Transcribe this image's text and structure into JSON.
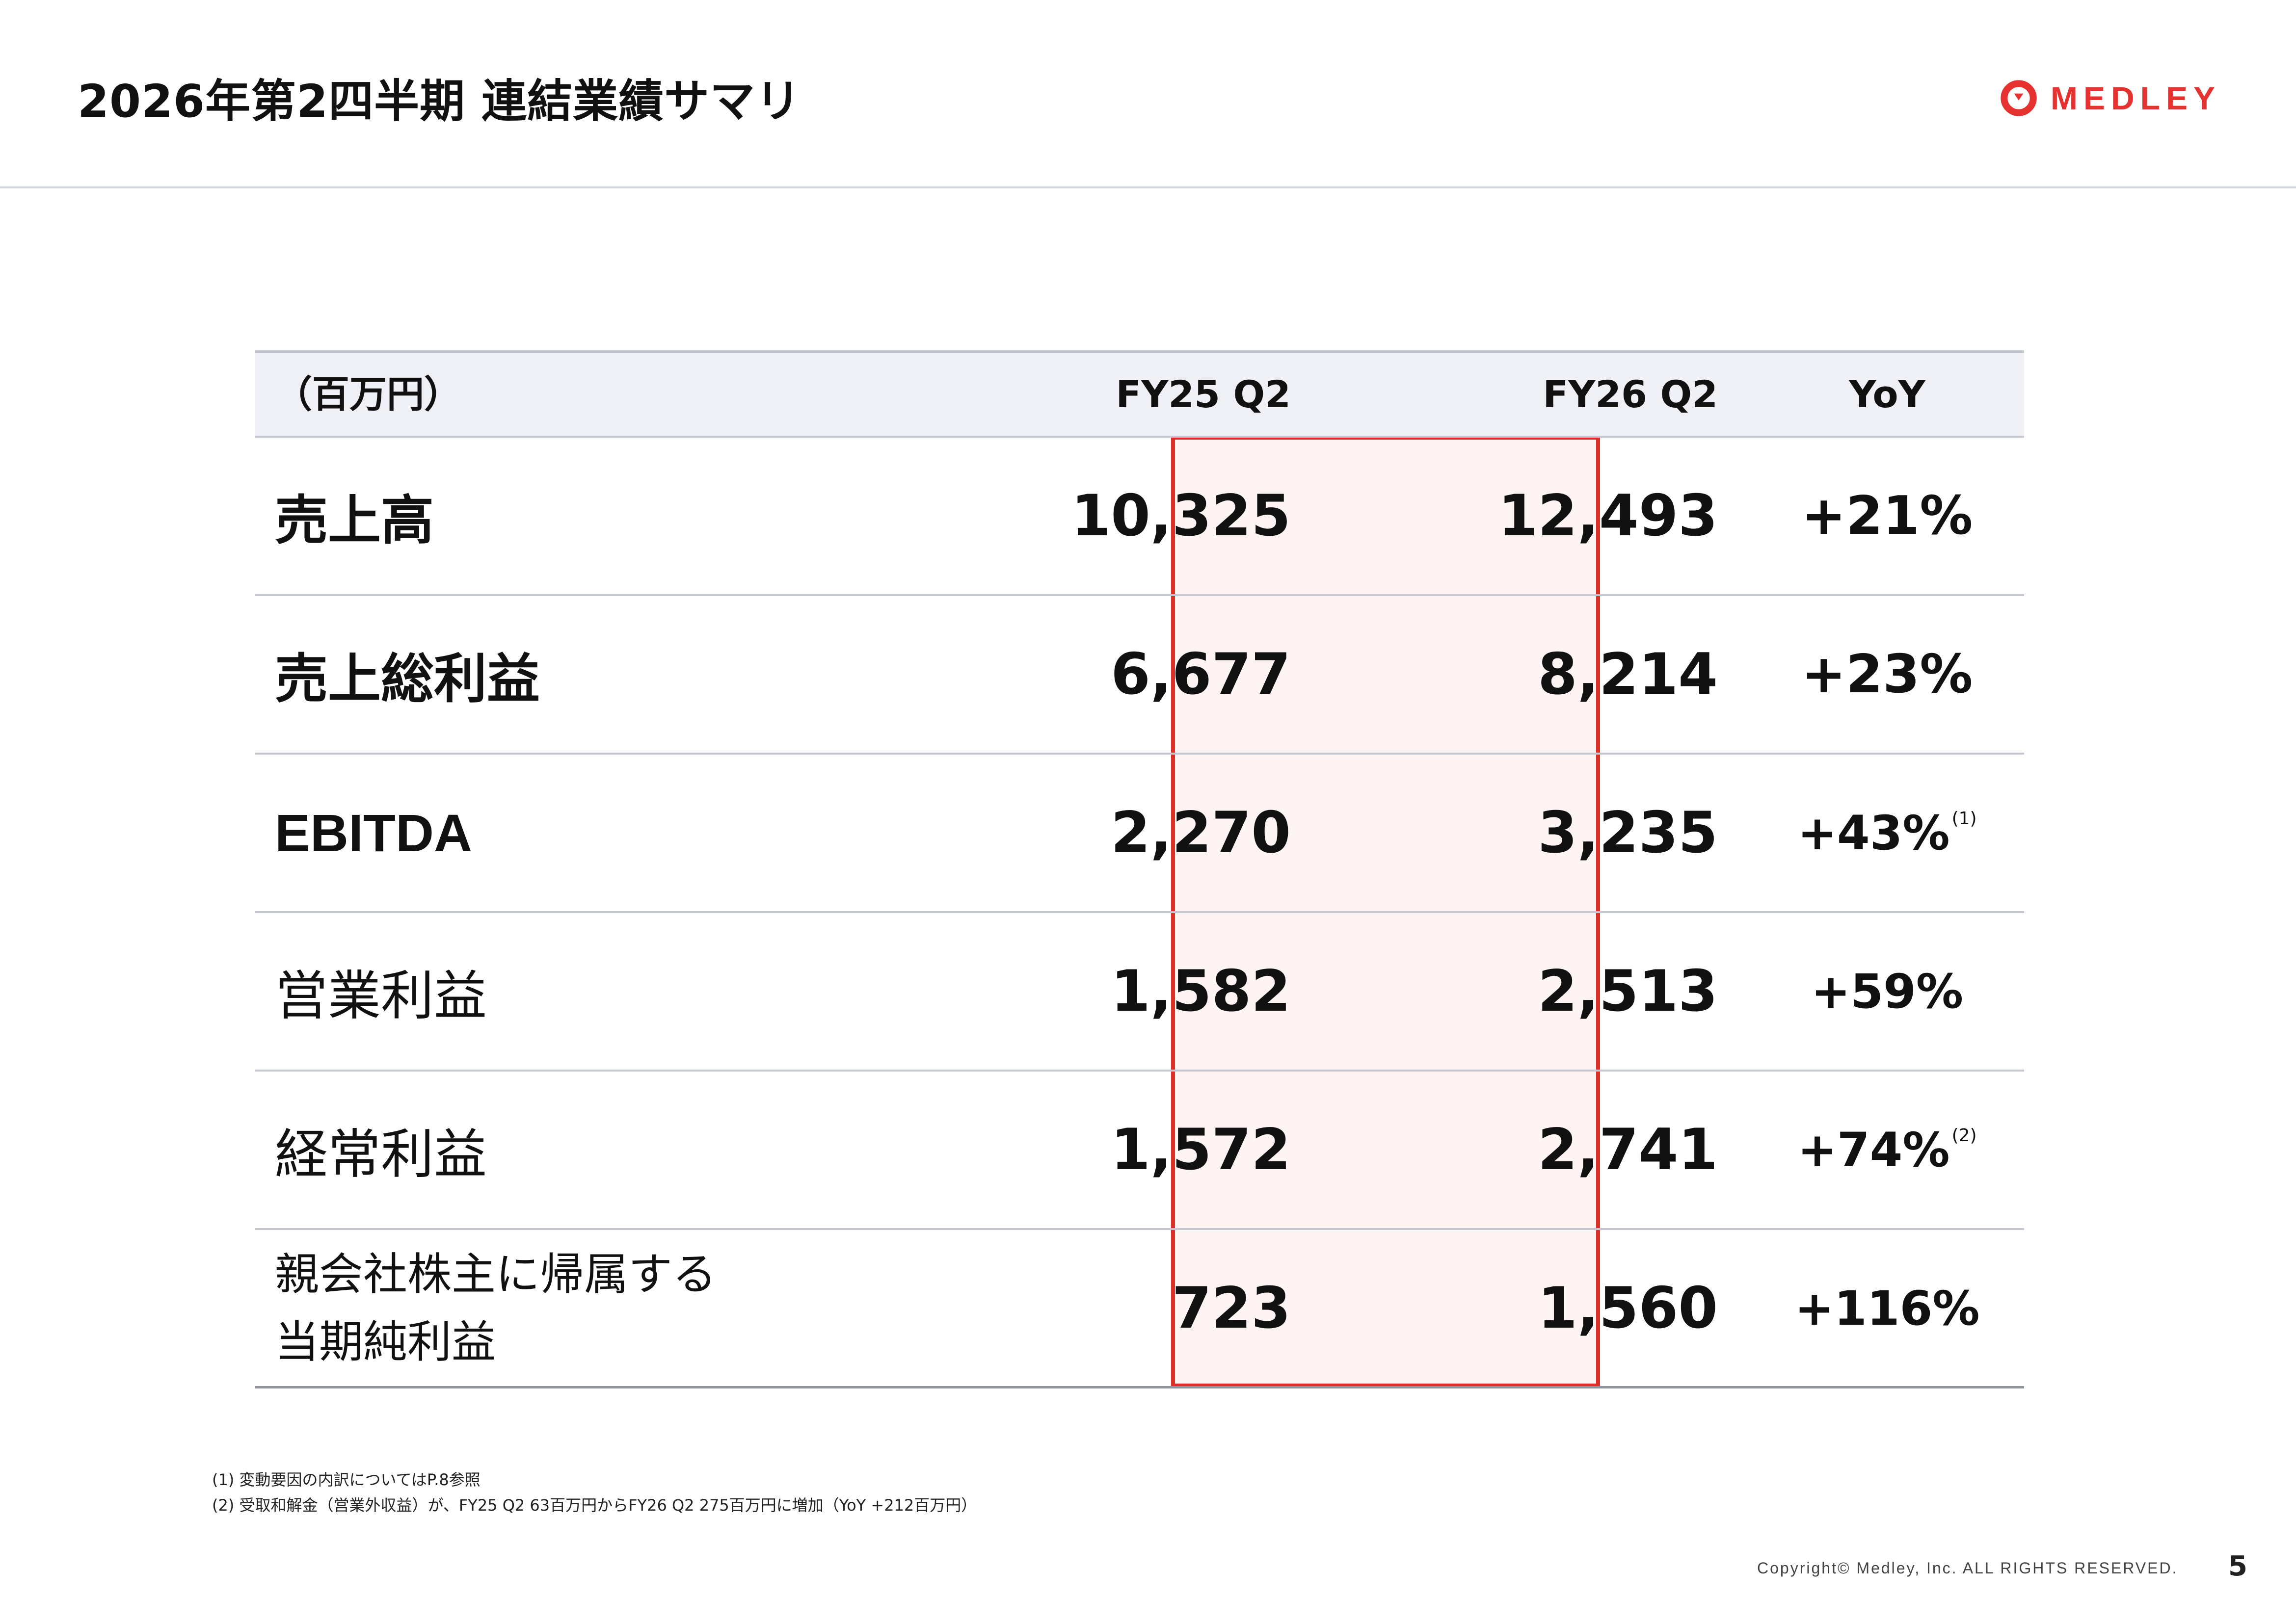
{
  "header": {
    "title": "2026年第2四半期 連結業績サマリ",
    "logo_text": "MEDLEY",
    "brand_color": "#e53130"
  },
  "table": {
    "columns": [
      "（百万円）",
      "FY25 Q2",
      "FY26 Q2",
      "YoY"
    ],
    "rows": [
      {
        "label": "売上高",
        "fy25": "10,325",
        "fy26": "12,493",
        "yoy": "+21%",
        "note": ""
      },
      {
        "label": "売上総利益",
        "fy25": "6,677",
        "fy26": "8,214",
        "yoy": "+23%",
        "note": ""
      },
      {
        "label": "EBITDA",
        "fy25": "2,270",
        "fy26": "3,235",
        "yoy": "+43%",
        "note": "(1)"
      },
      {
        "label": "営業利益",
        "fy25": "1,582",
        "fy26": "2,513",
        "yoy": "+59%",
        "note": ""
      },
      {
        "label": "経常利益",
        "fy25": "1,572",
        "fy26": "2,741",
        "yoy": "+74%",
        "note": "(2)"
      },
      {
        "label_line1": "親会社株主に帰属する",
        "label_line2": "当期純利益",
        "fy25": "723",
        "fy26": "1,560",
        "yoy": "+116%",
        "note": ""
      }
    ],
    "highlight_color": "#dc2f27"
  },
  "footnotes": [
    "(1) 変動要因の内訳についてはP.8参照",
    "(2) 受取和解金（営業外収益）が、FY25 Q2 63百万円からFY26 Q2 275百万円に増加（YoY +212百万円）"
  ],
  "footer": {
    "copyright": "Copyright© Medley, Inc. ALL RIGHTS RESERVED.",
    "page_number": "5"
  }
}
